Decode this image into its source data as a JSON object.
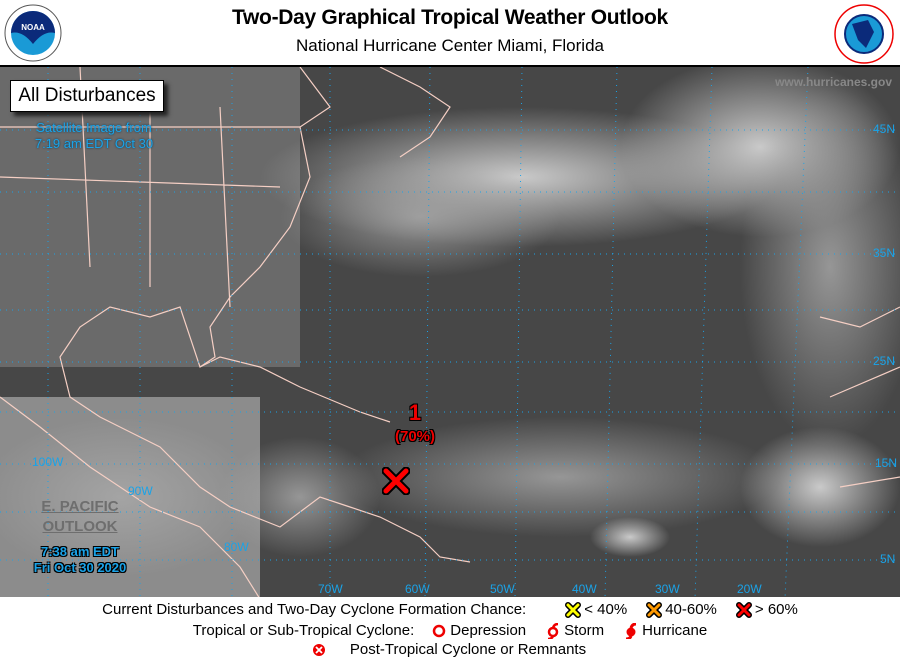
{
  "header": {
    "title": "Two-Day Graphical Tropical Weather Outlook",
    "subtitle": "National Hurricane Center  Miami, Florida",
    "left_logo": "NOAA",
    "right_logo": "NATIONAL WEATHER SERVICE"
  },
  "map": {
    "filter_label": "All Disturbances",
    "satellite_line1": "Satellite Image from",
    "satellite_line2": "7:19 am EDT Oct 30",
    "website": "www.hurricanes.gov",
    "epac_line1": "E. PACIFIC",
    "epac_line2": "OUTLOOK",
    "issued_line1": "7:38 am EDT",
    "issued_line2": "Fri Oct 30 2020",
    "lon_labels": [
      "100W",
      "90W",
      "80W",
      "70W",
      "60W",
      "50W",
      "40W",
      "30W",
      "20W"
    ],
    "lat_labels": [
      "45N",
      "35N",
      "25N",
      "15N",
      "5N"
    ],
    "disturbances": [
      {
        "number": "1",
        "chance": "(70%)",
        "category": "> 60%",
        "color": "#ff0000"
      }
    ]
  },
  "legend": {
    "row1_label": "Current Disturbances and Two-Day Cyclone Formation Chance:",
    "low": "< 40%",
    "mid": "40-60%",
    "high": "> 60%",
    "colors": {
      "low": "#ffff00",
      "mid": "#ff9900",
      "high": "#ff0000"
    },
    "row2_label": "Tropical or Sub-Tropical Cyclone:",
    "depression": "Depression",
    "storm": "Storm",
    "hurricane": "Hurricane",
    "row3_label": "Post-Tropical Cyclone or Remnants"
  }
}
